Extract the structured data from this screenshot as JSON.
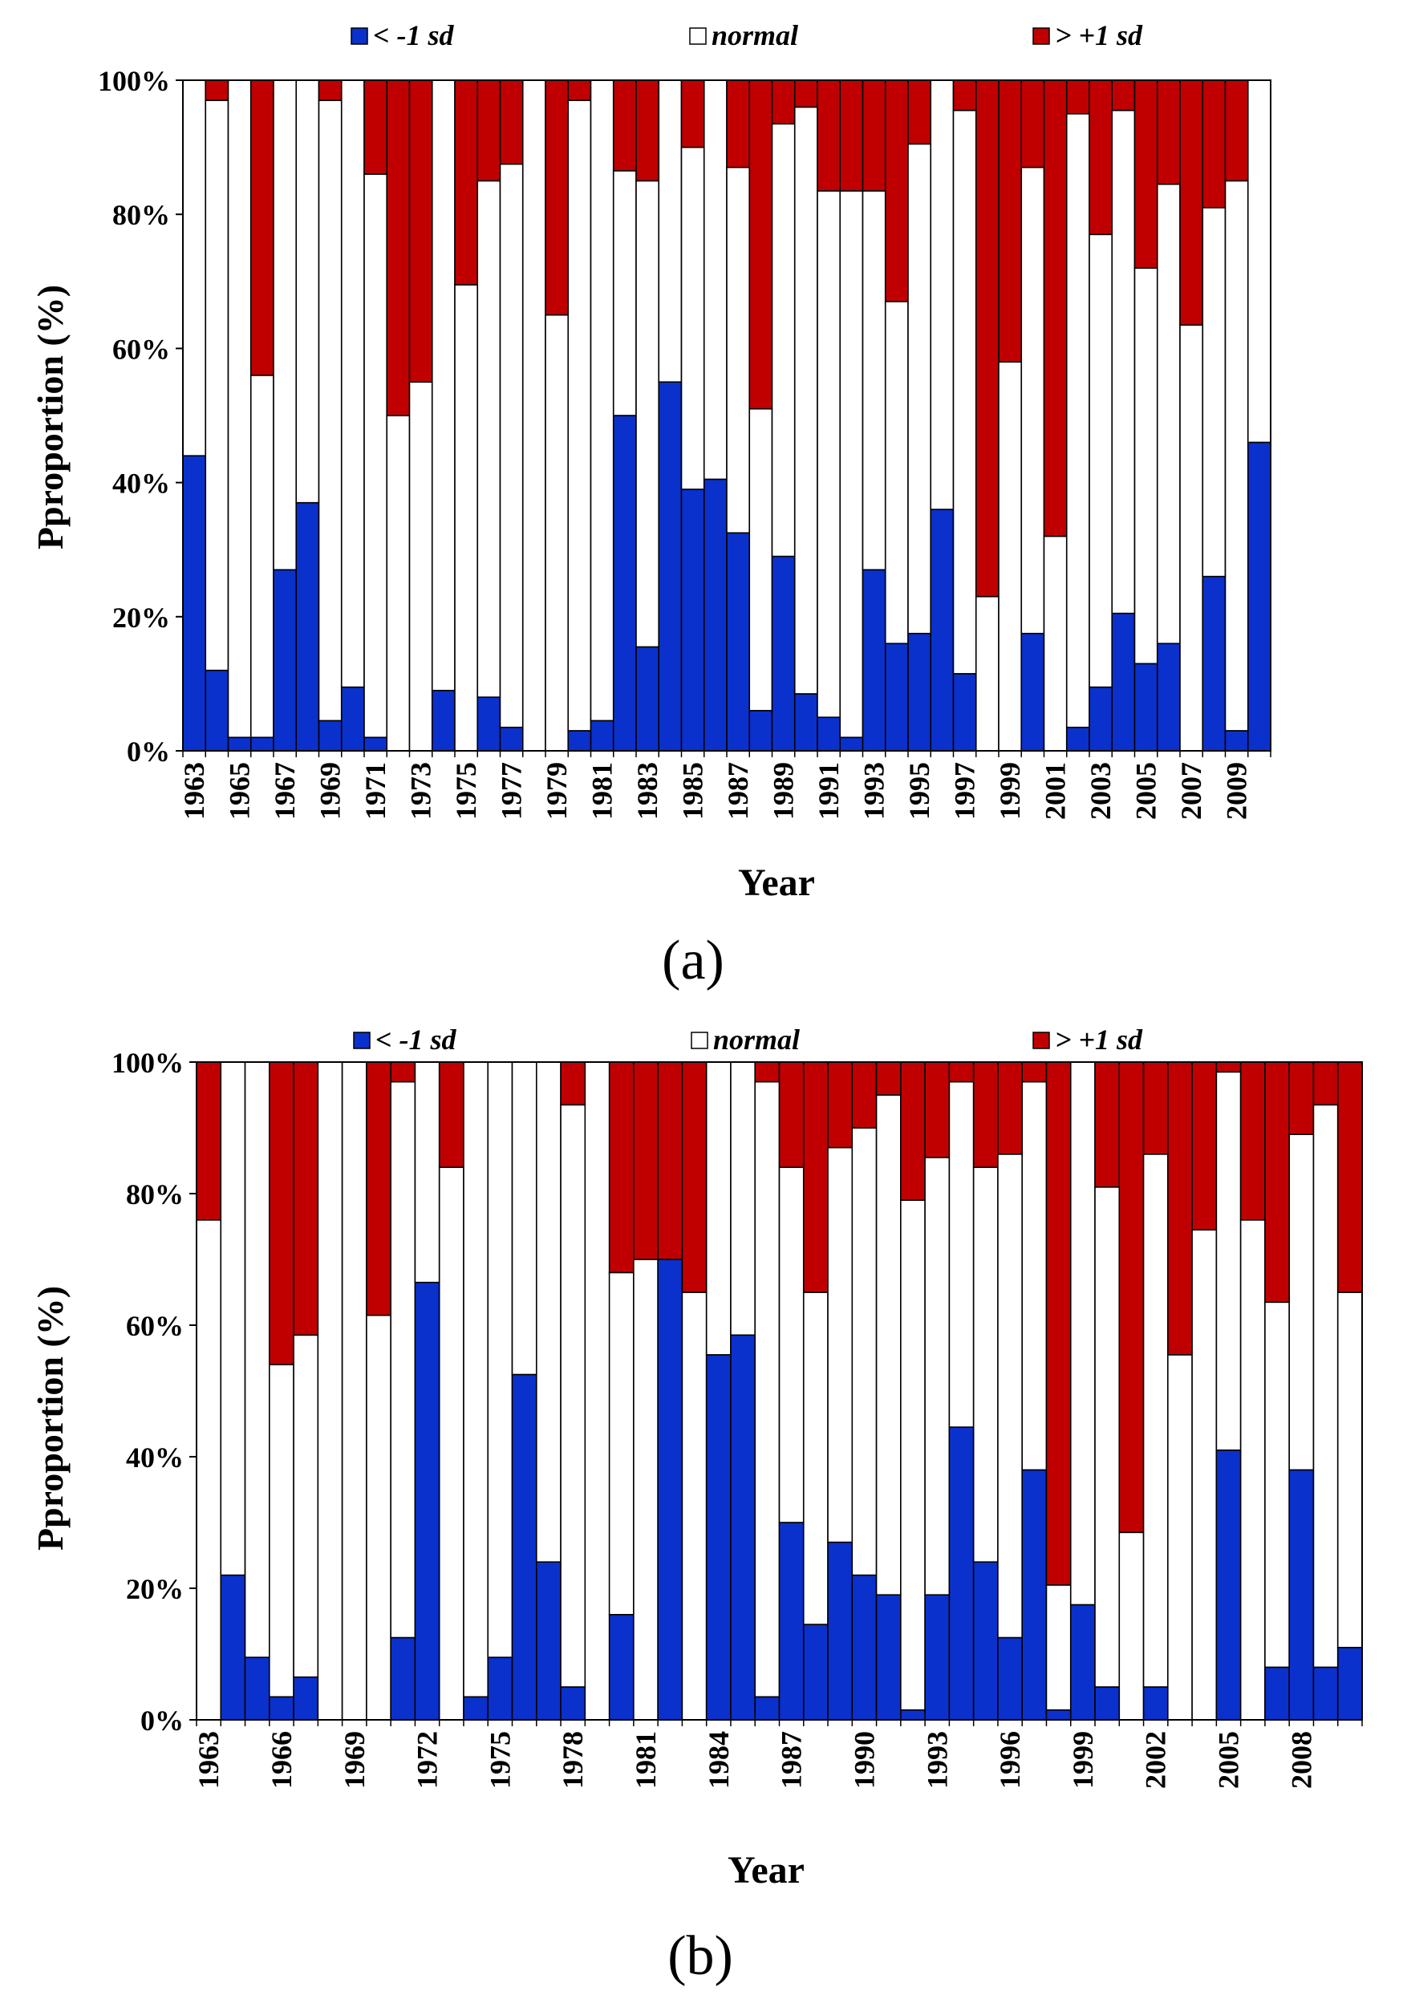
{
  "colors": {
    "below": "#0b31cc",
    "normal": "#ffffff",
    "above": "#c00000"
  },
  "chart_data": [
    {
      "type": "bar",
      "stacked": true,
      "panel_label": "(a)",
      "xlabel": "Year",
      "ylabel": "Pproportion (%)",
      "ylim": [
        0,
        100
      ],
      "yticks": [
        "0%",
        "20%",
        "40%",
        "60%",
        "80%",
        "100%"
      ],
      "legend": [
        {
          "key": "below",
          "text": "< -1 sd"
        },
        {
          "key": "normal",
          "text": "normal"
        },
        {
          "key": "above",
          "text": "> +1 sd"
        }
      ],
      "categories": [
        "1963",
        "1964",
        "1965",
        "1966",
        "1967",
        "1968",
        "1969",
        "1970",
        "1971",
        "1972",
        "1973",
        "1974",
        "1975",
        "1976",
        "1977",
        "1978",
        "1979",
        "1980",
        "1981",
        "1982",
        "1983",
        "1984",
        "1985",
        "1986",
        "1987",
        "1988",
        "1989",
        "1990",
        "1991",
        "1992",
        "1993",
        "1994",
        "1995",
        "1996",
        "1997",
        "1998",
        "1999",
        "2000",
        "2001",
        "2002",
        "2003",
        "2004",
        "2005",
        "2006",
        "2007",
        "2008",
        "2009",
        "2010"
      ],
      "tick_labels": [
        "1963",
        "1965",
        "1967",
        "1969",
        "1971",
        "1973",
        "1975",
        "1977",
        "1979",
        "1981",
        "1983",
        "1985",
        "1987",
        "1989",
        "1991",
        "1993",
        "1995",
        "1997",
        "1999",
        "2001",
        "2003",
        "2005",
        "2007",
        "2009"
      ],
      "series": [
        {
          "name": "< -1 sd",
          "values": [
            44,
            12,
            2,
            2,
            27,
            37,
            4.5,
            9.5,
            2,
            0,
            0,
            9,
            0,
            8,
            3.5,
            0,
            0,
            3,
            4.5,
            50,
            15.5,
            55,
            39,
            40.5,
            32.5,
            6,
            29,
            8.5,
            5,
            2,
            27,
            16,
            17.5,
            36,
            11.5,
            0,
            0,
            17.5,
            0,
            3.5,
            9.5,
            20.5,
            13,
            16,
            0,
            26,
            3,
            46
          ]
        },
        {
          "name": "normal",
          "values": [
            56,
            85,
            98,
            54,
            73,
            63,
            92.5,
            90.5,
            84,
            50,
            55,
            91,
            69.5,
            77,
            84,
            100,
            65,
            94,
            95.5,
            36.5,
            69.5,
            45,
            51,
            59.5,
            54.5,
            45,
            64.5,
            87.5,
            78.5,
            81.5,
            56.5,
            51,
            73,
            64,
            84,
            23,
            58,
            69.5,
            32,
            91.5,
            67.5,
            75,
            59,
            68.5,
            63.5,
            55,
            82,
            54
          ]
        },
        {
          "name": "> +1 sd",
          "values": [
            0,
            3,
            0,
            44,
            0,
            0,
            3,
            0,
            14,
            50,
            45,
            0,
            30.5,
            15,
            12.5,
            0,
            35,
            3,
            0,
            13.5,
            15,
            0,
            10,
            0,
            13,
            49,
            6.5,
            4,
            16.5,
            16.5,
            16.5,
            33,
            9.5,
            0,
            4.5,
            77,
            42,
            13,
            68,
            5,
            23,
            4.5,
            28,
            15.5,
            36.5,
            19,
            15,
            0
          ]
        }
      ]
    },
    {
      "type": "bar",
      "stacked": true,
      "panel_label": "(b)",
      "xlabel": "Year",
      "ylabel": "Pproportion (%)",
      "ylim": [
        0,
        100
      ],
      "yticks": [
        "0%",
        "20%",
        "40%",
        "60%",
        "80%",
        "100%"
      ],
      "legend": [
        {
          "key": "below",
          "text": "< -1 sd"
        },
        {
          "key": "normal",
          "text": "normal"
        },
        {
          "key": "above",
          "text": "> +1 sd"
        }
      ],
      "categories": [
        "1963",
        "1964",
        "1965",
        "1966",
        "1967",
        "1968",
        "1969",
        "1970",
        "1971",
        "1972",
        "1973",
        "1974",
        "1975",
        "1976",
        "1977",
        "1978",
        "1979",
        "1980",
        "1981",
        "1982",
        "1983",
        "1984",
        "1985",
        "1986",
        "1987",
        "1988",
        "1989",
        "1990",
        "1991",
        "1992",
        "1993",
        "1994",
        "1995",
        "1996",
        "1997",
        "1998",
        "1999",
        "2000",
        "2001",
        "2002",
        "2003",
        "2004",
        "2005",
        "2006",
        "2007",
        "2008",
        "2009",
        "2010"
      ],
      "tick_labels": [
        "1963",
        "1966",
        "1969",
        "1972",
        "1975",
        "1978",
        "1981",
        "1984",
        "1987",
        "1990",
        "1993",
        "1996",
        "1999",
        "2002",
        "2005",
        "2008"
      ],
      "series": [
        {
          "name": "< -1 sd",
          "values": [
            0,
            22,
            9.5,
            3.5,
            6.5,
            0,
            0,
            0,
            12.5,
            66.5,
            0,
            3.5,
            9.5,
            52.5,
            24,
            5,
            0,
            16,
            0,
            70,
            0,
            55.5,
            58.5,
            3.5,
            30,
            14.5,
            27,
            22,
            19,
            1.5,
            19,
            44.5,
            24,
            12.5,
            38,
            1.5,
            17.5,
            5,
            0,
            5,
            0,
            0,
            41,
            0,
            8,
            38,
            8,
            11
          ]
        },
        {
          "name": "normal",
          "values": [
            76,
            78,
            90.5,
            50.5,
            52,
            100,
            100,
            61.5,
            84.5,
            33.5,
            84,
            96.5,
            90.5,
            47.5,
            76,
            88.5,
            0,
            52,
            70,
            0,
            65,
            44.5,
            41.5,
            93.5,
            54,
            50.5,
            60,
            68,
            76,
            77.5,
            66.5,
            52.5,
            60,
            73.5,
            59,
            19,
            82.5,
            76,
            28.5,
            81,
            55.5,
            74.5,
            57.5,
            76,
            55.5,
            51,
            85.5,
            54
          ]
        },
        {
          "name": "> +1 sd",
          "values": [
            24,
            0,
            0,
            46,
            41.5,
            0,
            0,
            38.5,
            3,
            0,
            16,
            0,
            0,
            0,
            0,
            6.5,
            0,
            32,
            30,
            30,
            35,
            0,
            0,
            3,
            16,
            35,
            13,
            10,
            5,
            21,
            14.5,
            3,
            16,
            14,
            3,
            79.5,
            0,
            19,
            71.5,
            14,
            44.5,
            25.5,
            1.5,
            24,
            36.5,
            11,
            6.5,
            35
          ]
        }
      ]
    }
  ]
}
